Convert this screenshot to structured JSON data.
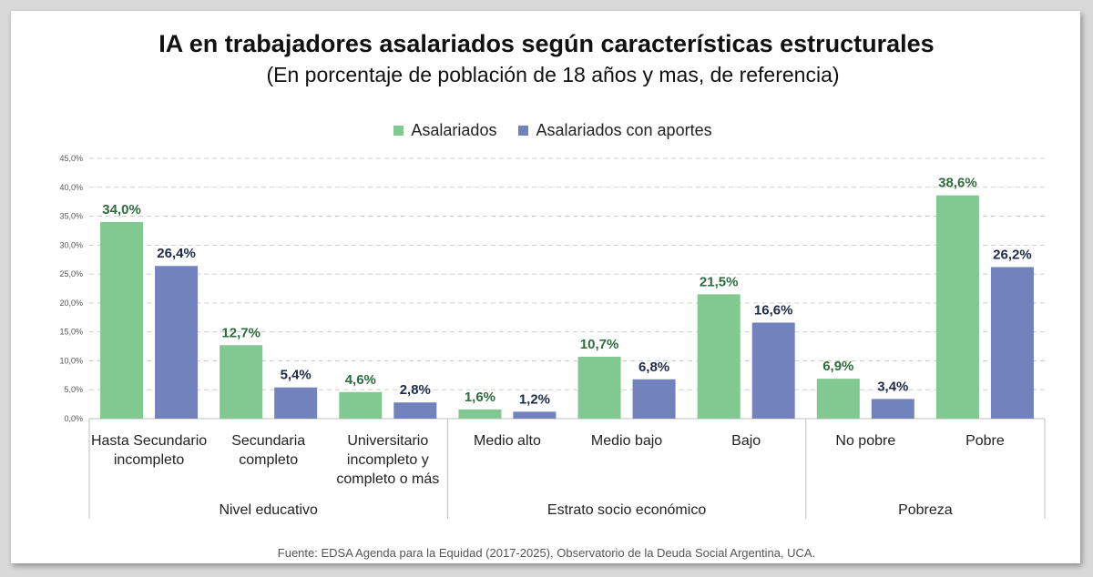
{
  "chart_data": {
    "type": "bar",
    "title": "IA en trabajadores asalariados según características estructurales",
    "subtitle": "(En porcentaje de población de 18 años y mas, de referencia)",
    "ylim": [
      0,
      45
    ],
    "yticks": [
      "0,0%",
      "5,0%",
      "10,0%",
      "15,0%",
      "20,0%",
      "25,0%",
      "30,0%",
      "35,0%",
      "40,0%",
      "45,0%"
    ],
    "grid": true,
    "legend_position": "top-center",
    "categories": [
      [
        "Hasta Secundario",
        "incompleto"
      ],
      [
        "Secundaria",
        "completo"
      ],
      [
        "Universitario",
        "incompleto y",
        "completo o más"
      ],
      [
        "Medio alto"
      ],
      [
        "Medio bajo"
      ],
      [
        "Bajo"
      ],
      [
        "No pobre"
      ],
      [
        "Pobre"
      ]
    ],
    "groups": [
      {
        "label": "Nivel educativo",
        "size": 3
      },
      {
        "label": "Estrato socio económico",
        "size": 3
      },
      {
        "label": "Pobreza",
        "size": 2
      }
    ],
    "series": [
      {
        "name": "Asalariados",
        "color": "#82c891",
        "label_color": "#2e6b3d",
        "values": [
          34.0,
          12.7,
          4.6,
          1.6,
          10.7,
          21.5,
          6.9,
          38.6
        ],
        "labels": [
          "34,0%",
          "12,7%",
          "4,6%",
          "1,6%",
          "10,7%",
          "21,5%",
          "6,9%",
          "38,6%"
        ]
      },
      {
        "name": "Asalariados con aportes",
        "color": "#7282bd",
        "label_color": "#1f2a4a",
        "values": [
          26.4,
          5.4,
          2.8,
          1.2,
          6.8,
          16.6,
          3.4,
          26.2
        ],
        "labels": [
          "26,4%",
          "5,4%",
          "2,8%",
          "1,2%",
          "6,8%",
          "16,6%",
          "3,4%",
          "26,2%"
        ]
      }
    ]
  },
  "source": "Fuente: EDSA Agenda para la Equidad (2017-2025), Observatorio de la Deuda Social Argentina, UCA."
}
